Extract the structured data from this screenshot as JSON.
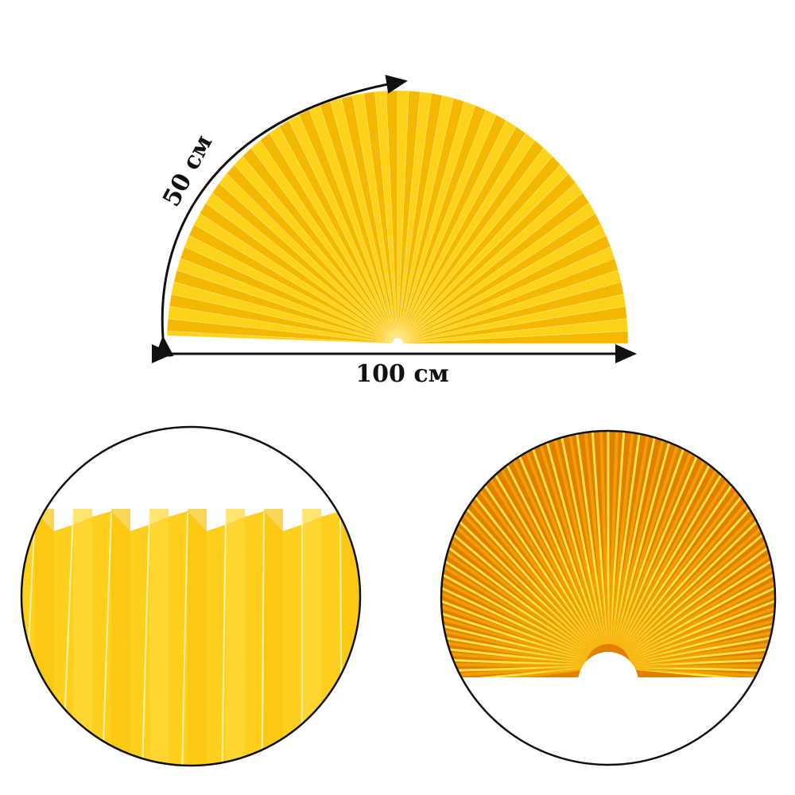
{
  "labels": {
    "arc_dimension": "50 см",
    "width_dimension": "100 см"
  },
  "colors": {
    "fan_light": "#ffd21a",
    "fan_dark": "#f5b800",
    "fan_orange": "#e88a00",
    "outline": "#111111"
  },
  "icons": [
    "arc-arrow-icon",
    "double-arrow-icon"
  ]
}
